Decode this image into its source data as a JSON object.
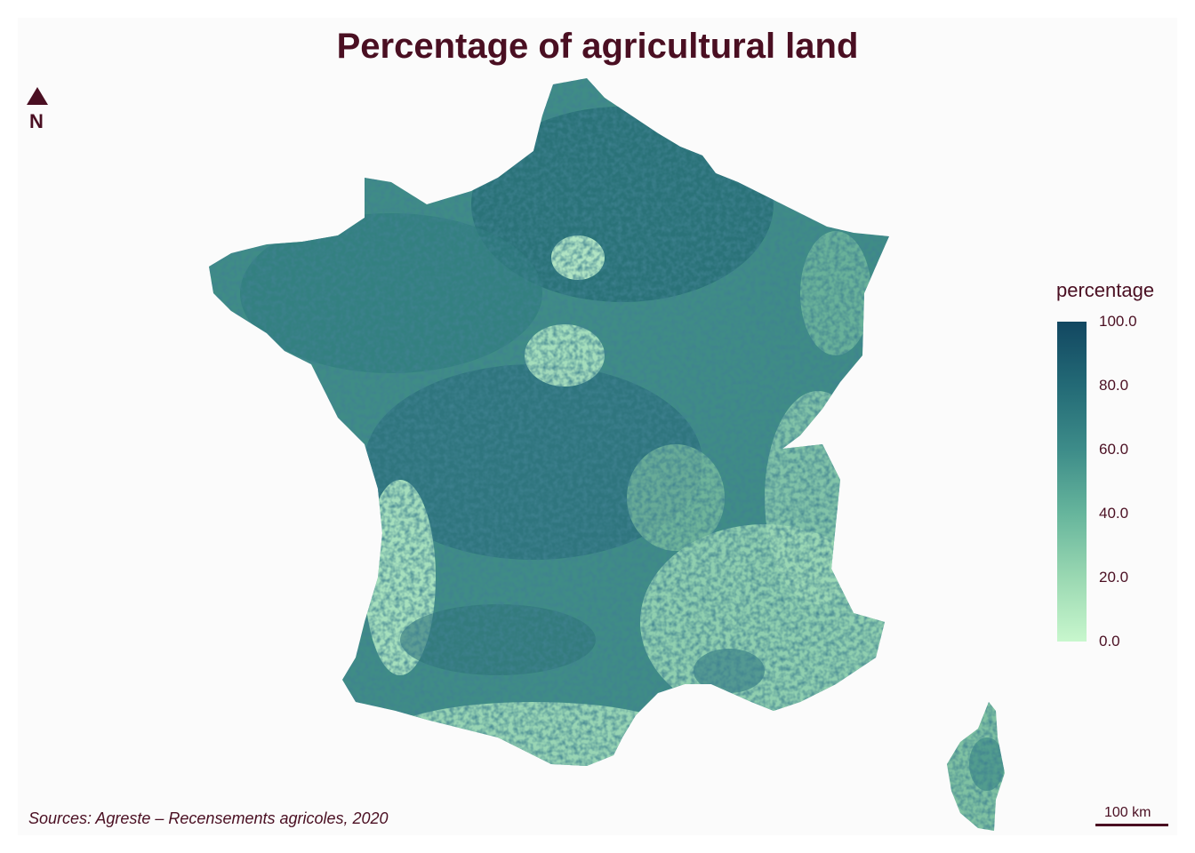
{
  "title": "Percentage of agricultural land",
  "north_label": "N",
  "legend": {
    "title": "percentage",
    "ticks": [
      "100.0",
      "80.0",
      "60.0",
      "40.0",
      "20.0",
      "0.0"
    ],
    "colors": {
      "high": "#124761",
      "low": "#c8f7cd"
    },
    "range": [
      0,
      100
    ]
  },
  "source": "Sources: Agreste – Recensements agricoles, 2020",
  "scale_bar": "100 km",
  "accent_color": "#4a0f22"
}
